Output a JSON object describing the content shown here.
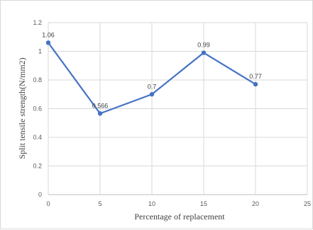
{
  "chart_data": {
    "type": "line",
    "xlabel": "Percentage of replacement",
    "ylabel": "Split tensile strength(N/mm2)",
    "xlim": [
      0,
      25
    ],
    "ylim": [
      0,
      1.2
    ],
    "xticks": [
      0,
      5,
      10,
      15,
      20,
      25
    ],
    "yticks": [
      0,
      0.2,
      0.4,
      0.6,
      0.8,
      1,
      1.2
    ],
    "grid": true,
    "legend": "none",
    "series": [
      {
        "x": [
          0,
          5,
          10,
          15,
          20
        ],
        "values": [
          1.06,
          0.566,
          0.7,
          0.99,
          0.77
        ],
        "labels": [
          "1.06",
          "0.566",
          "0.7",
          "0.99",
          "0.77"
        ],
        "color": "#4472c4"
      }
    ]
  }
}
